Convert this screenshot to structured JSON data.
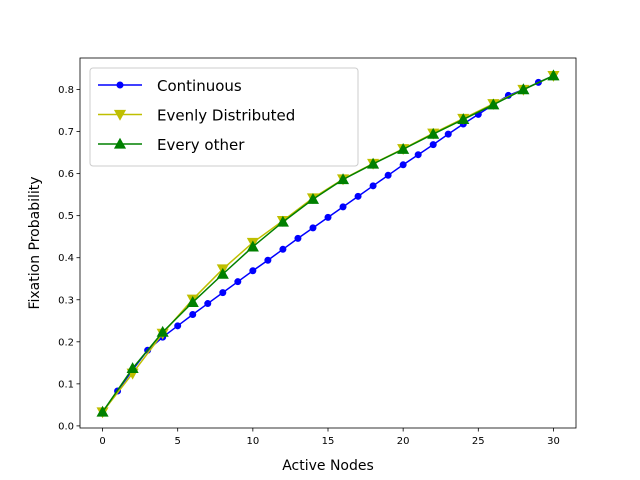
{
  "chart_data": {
    "type": "line",
    "xlabel": "Active Nodes",
    "ylabel": "Fixation Probability",
    "xlim": [
      -1.5,
      31.5
    ],
    "ylim": [
      -0.005,
      0.875
    ],
    "xticks": [
      0,
      5,
      10,
      15,
      20,
      25,
      30
    ],
    "xtick_labels": [
      "0",
      "5",
      "10",
      "15",
      "20",
      "25",
      "30"
    ],
    "yticks": [
      0.0,
      0.1,
      0.2,
      0.3,
      0.4,
      0.5,
      0.6,
      0.7,
      0.8
    ],
    "ytick_labels": [
      "0.0",
      "0.1",
      "0.2",
      "0.3",
      "0.4",
      "0.5",
      "0.6",
      "0.7",
      "0.8"
    ],
    "grid": false,
    "legend_position": "top-left",
    "series": [
      {
        "name": "Continuous",
        "color": "#0000ff",
        "marker": "circle",
        "x": [
          0,
          1,
          2,
          3,
          4,
          5,
          6,
          7,
          8,
          9,
          10,
          11,
          12,
          13,
          14,
          15,
          16,
          17,
          18,
          19,
          20,
          21,
          22,
          23,
          24,
          25,
          26,
          27,
          28,
          29,
          30
        ],
        "y": [
          0.033,
          0.083,
          0.133,
          0.18,
          0.211,
          0.238,
          0.265,
          0.291,
          0.317,
          0.343,
          0.369,
          0.394,
          0.42,
          0.446,
          0.471,
          0.496,
          0.521,
          0.546,
          0.571,
          0.596,
          0.621,
          0.645,
          0.669,
          0.694,
          0.718,
          0.741,
          0.764,
          0.786,
          0.8,
          0.817,
          0.833
        ]
      },
      {
        "name": "Evenly Distributed",
        "color": "#bfbf00",
        "marker": "triangle-down",
        "x": [
          0,
          2,
          4,
          6,
          8,
          10,
          12,
          14,
          16,
          18,
          20,
          22,
          24,
          26,
          28,
          30
        ],
        "y": [
          0.033,
          0.125,
          0.22,
          0.301,
          0.373,
          0.436,
          0.488,
          0.542,
          0.587,
          0.624,
          0.659,
          0.696,
          0.731,
          0.766,
          0.8,
          0.833
        ]
      },
      {
        "name": "Every other",
        "color": "#008000",
        "marker": "triangle-up",
        "x": [
          0,
          2,
          4,
          6,
          8,
          10,
          12,
          14,
          16,
          18,
          20,
          22,
          24,
          26,
          28,
          30
        ],
        "y": [
          0.033,
          0.137,
          0.223,
          0.294,
          0.361,
          0.426,
          0.485,
          0.539,
          0.586,
          0.623,
          0.658,
          0.694,
          0.729,
          0.764,
          0.8,
          0.833
        ]
      }
    ]
  }
}
